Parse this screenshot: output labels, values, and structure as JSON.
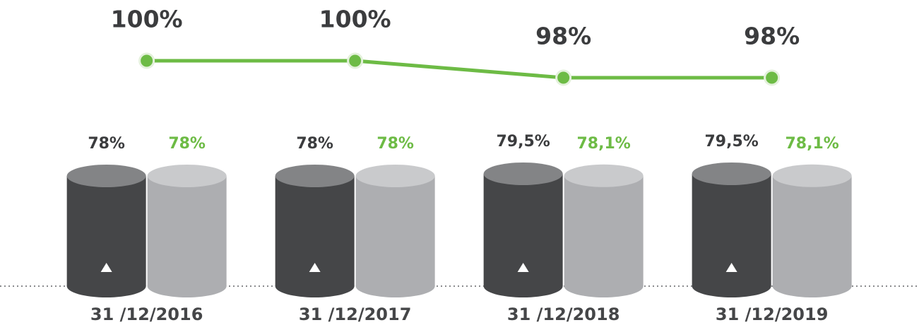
{
  "chart_data": {
    "type": "bar",
    "categories": [
      "31 /12/2016",
      "31 /12/2017",
      "31 /12/2018",
      "31 /12/2019"
    ],
    "series": [
      {
        "type": "line",
        "color": "#6dbb45",
        "values": [
          100,
          100,
          98,
          98
        ],
        "value_labels": [
          "100%",
          "100%",
          "98%",
          "98%"
        ]
      },
      {
        "type": "bar",
        "color": "#454648",
        "top_color": "#838486",
        "label_color": "#3b3c3e",
        "values": [
          78,
          78,
          79.5,
          79.5
        ],
        "value_labels": [
          "78%",
          "78%",
          "79,5%",
          "79,5%"
        ]
      },
      {
        "type": "bar",
        "color": "#adaeb1",
        "top_color": "#c9cacc",
        "label_color": "#6dbb45",
        "values": [
          78,
          78,
          78.1,
          78.1
        ],
        "value_labels": [
          "78%",
          "78%",
          "78,1%",
          "78,1%"
        ]
      }
    ]
  }
}
